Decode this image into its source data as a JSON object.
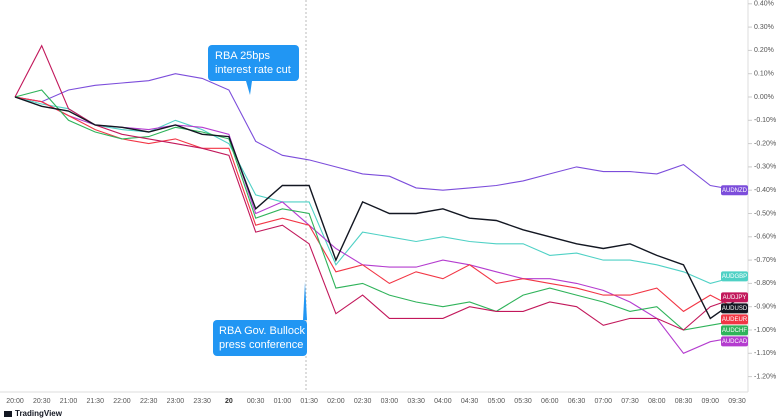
{
  "chart_data": {
    "type": "line",
    "categories": [
      "20:00",
      "20:30",
      "21:00",
      "21:30",
      "22:00",
      "22:30",
      "23:00",
      "23:30",
      "20",
      "00:30",
      "01:00",
      "01:30",
      "02:00",
      "02:30",
      "03:00",
      "03:30",
      "04:00",
      "04:30",
      "05:00",
      "05:30",
      "06:00",
      "06:30",
      "07:00",
      "07:30",
      "08:00",
      "08:30",
      "09:00",
      "09:30"
    ],
    "series": [
      {
        "name": "AUDNZD",
        "color": "#7c4ddb",
        "values": [
          0,
          -0.02,
          0.03,
          0.05,
          0.06,
          0.07,
          0.1,
          0.08,
          0.03,
          -0.19,
          -0.25,
          -0.27,
          -0.3,
          -0.33,
          -0.34,
          -0.39,
          -0.4,
          -0.39,
          -0.38,
          -0.36,
          -0.33,
          -0.3,
          -0.32,
          -0.32,
          -0.33,
          -0.29,
          -0.38,
          -0.4
        ]
      },
      {
        "name": "AUDGBP",
        "color": "#4fd1c5",
        "values": [
          0,
          -0.03,
          -0.05,
          -0.12,
          -0.14,
          -0.15,
          -0.1,
          -0.14,
          -0.2,
          -0.42,
          -0.45,
          -0.45,
          -0.72,
          -0.58,
          -0.6,
          -0.62,
          -0.6,
          -0.62,
          -0.63,
          -0.63,
          -0.68,
          -0.67,
          -0.7,
          -0.7,
          -0.72,
          -0.75,
          -0.8,
          -0.77
        ]
      },
      {
        "name": "AUDCAD",
        "color": "#b43ccf",
        "values": [
          0,
          -0.02,
          -0.08,
          -0.12,
          -0.13,
          -0.14,
          -0.12,
          -0.13,
          -0.16,
          -0.5,
          -0.45,
          -0.55,
          -0.65,
          -0.72,
          -0.73,
          -0.73,
          -0.7,
          -0.72,
          -0.75,
          -0.78,
          -0.78,
          -0.8,
          -0.83,
          -0.88,
          -0.95,
          -1.1,
          -1.05,
          -1.03
        ]
      },
      {
        "name": "AUDEUR",
        "color": "#f23645",
        "values": [
          0,
          -0.02,
          -0.08,
          -0.14,
          -0.18,
          -0.2,
          -0.18,
          -0.22,
          -0.22,
          -0.55,
          -0.52,
          -0.55,
          -0.75,
          -0.72,
          -0.8,
          -0.75,
          -0.78,
          -0.72,
          -0.8,
          -0.78,
          -0.8,
          -0.82,
          -0.85,
          -0.85,
          -0.82,
          -0.92,
          -0.85,
          -0.91
        ]
      },
      {
        "name": "AUDCHF",
        "color": "#2fb35a",
        "values": [
          0,
          0.03,
          -0.1,
          -0.15,
          -0.18,
          -0.17,
          -0.13,
          -0.15,
          -0.18,
          -0.52,
          -0.48,
          -0.5,
          -0.82,
          -0.8,
          -0.85,
          -0.88,
          -0.9,
          -0.88,
          -0.92,
          -0.85,
          -0.82,
          -0.85,
          -0.88,
          -0.92,
          -0.9,
          -1.0,
          -0.98,
          -0.96
        ]
      },
      {
        "name": "AUDJPY",
        "color": "#c2185b",
        "values": [
          0,
          0.22,
          -0.05,
          -0.12,
          -0.16,
          -0.18,
          -0.2,
          -0.22,
          -0.25,
          -0.58,
          -0.55,
          -0.63,
          -0.93,
          -0.85,
          -0.95,
          -0.95,
          -0.95,
          -0.9,
          -0.92,
          -0.92,
          -0.88,
          -0.9,
          -0.98,
          -0.95,
          -0.95,
          -1.0,
          -0.9,
          -0.86
        ]
      },
      {
        "name": "AUDUSD",
        "color": "#131722",
        "values": [
          0,
          -0.04,
          -0.06,
          -0.12,
          -0.13,
          -0.15,
          -0.12,
          -0.16,
          -0.17,
          -0.48,
          -0.38,
          -0.38,
          -0.7,
          -0.45,
          -0.5,
          -0.5,
          -0.48,
          -0.52,
          -0.53,
          -0.57,
          -0.6,
          -0.63,
          -0.65,
          -0.63,
          -0.68,
          -0.72,
          -0.95,
          -0.87
        ]
      }
    ],
    "ylim": [
      0.4,
      -1.2
    ],
    "yticks": [
      {
        "value": 0.4,
        "label": "0.40%"
      },
      {
        "value": 0.3,
        "label": "0.30%"
      },
      {
        "value": 0.2,
        "label": "0.20%"
      },
      {
        "value": 0.1,
        "label": "0.10%"
      },
      {
        "value": 0,
        "label": "0.00%"
      },
      {
        "value": -0.1,
        "label": "-0.10%"
      },
      {
        "value": -0.2,
        "label": "-0.20%"
      },
      {
        "value": -0.3,
        "label": "-0.30%"
      },
      {
        "value": -0.4,
        "label": "-0.40%"
      },
      {
        "value": -0.5,
        "label": "-0.50%"
      },
      {
        "value": -0.6,
        "label": "-0.60%"
      },
      {
        "value": -0.7,
        "label": "-0.70%"
      },
      {
        "value": -0.8,
        "label": "-0.80%"
      },
      {
        "value": -0.9,
        "label": "-0.90%"
      },
      {
        "value": -1,
        "label": "-1.00%"
      },
      {
        "value": -1.1,
        "label": "-1.10%"
      },
      {
        "value": -1.2,
        "label": "-1.20%"
      }
    ],
    "grid": false,
    "annotations": [
      [
        "RBA 25bps",
        "interest rate cut"
      ],
      [
        "RBA Gov. Bullock",
        "press conference"
      ]
    ],
    "brand": "TradingView"
  }
}
